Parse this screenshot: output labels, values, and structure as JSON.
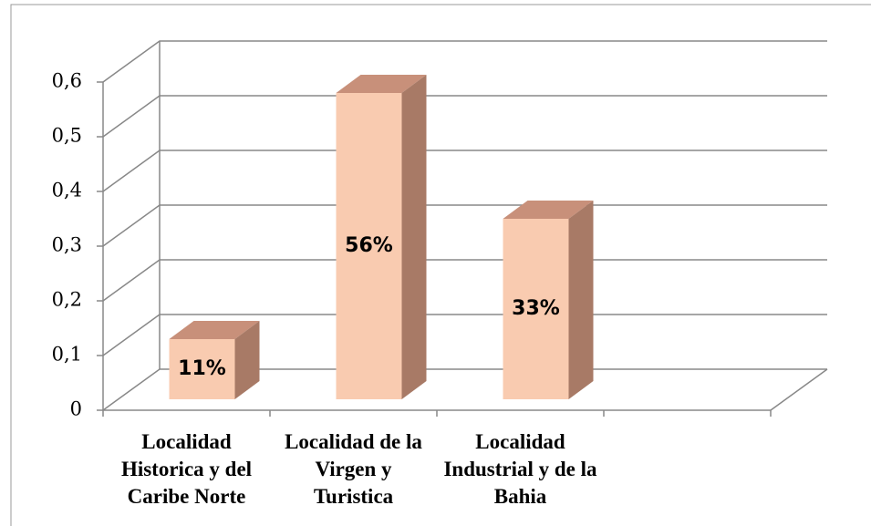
{
  "chart_data": {
    "type": "bar3d",
    "categories": [
      "Localidad Historica y del Caribe Norte",
      "Localidad de la Virgen y Turistica",
      "Localidad Industrial y de la Bahia",
      null
    ],
    "values": [
      0.11,
      0.56,
      0.33,
      null
    ],
    "value_labels": [
      "11%",
      "56%",
      "33%",
      null
    ],
    "colors": {
      "front": "#f9cbb0",
      "top": "#c8907a",
      "side": "#a87a66"
    },
    "ylim": [
      0,
      0.6
    ],
    "yticks": [
      0,
      {
        "value": 0.1,
        "label": "0,1"
      },
      {
        "value": 0.2,
        "label": "0,2"
      },
      {
        "value": 0.3,
        "label": "0,3"
      },
      {
        "value": 0.4,
        "label": "0,4"
      },
      {
        "value": 0.5,
        "label": "0,5"
      },
      {
        "value": 0.6,
        "label": "0,6"
      }
    ],
    "grid": true
  }
}
